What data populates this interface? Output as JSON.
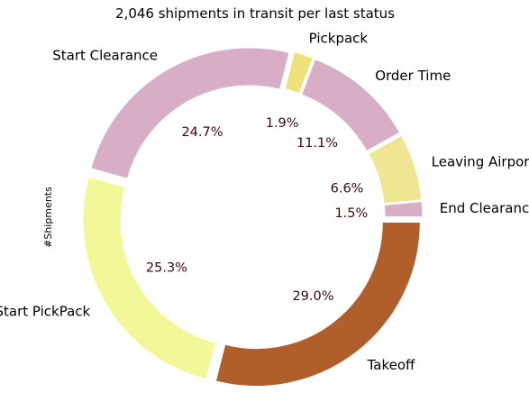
{
  "chart_data": {
    "type": "pie",
    "style": "donut",
    "title": "2,046 shipments in transit per last status",
    "ylabel": "#Shipments",
    "legend": "none",
    "slices": [
      {
        "label": "End Clearance",
        "percent": "1.5%",
        "value": 1.5,
        "color": "#d8aec6"
      },
      {
        "label": "Leaving Airport",
        "percent": "6.6%",
        "value": 6.6,
        "color": "#efe691"
      },
      {
        "label": "Order Time",
        "percent": "11.1%",
        "value": 11.1,
        "color": "#d8aec6"
      },
      {
        "label": "Pickpack",
        "percent": "1.9%",
        "value": 1.9,
        "color": "#efe07a"
      },
      {
        "label": "Start Clearance",
        "percent": "24.7%",
        "value": 24.7,
        "color": "#d8aec6"
      },
      {
        "label": "Start PickPack",
        "percent": "25.3%",
        "value": 25.3,
        "color": "#f2f797"
      },
      {
        "label": "Takeoff",
        "percent": "29.0%",
        "value": 29.0,
        "color": "#b05f2a"
      }
    ]
  }
}
